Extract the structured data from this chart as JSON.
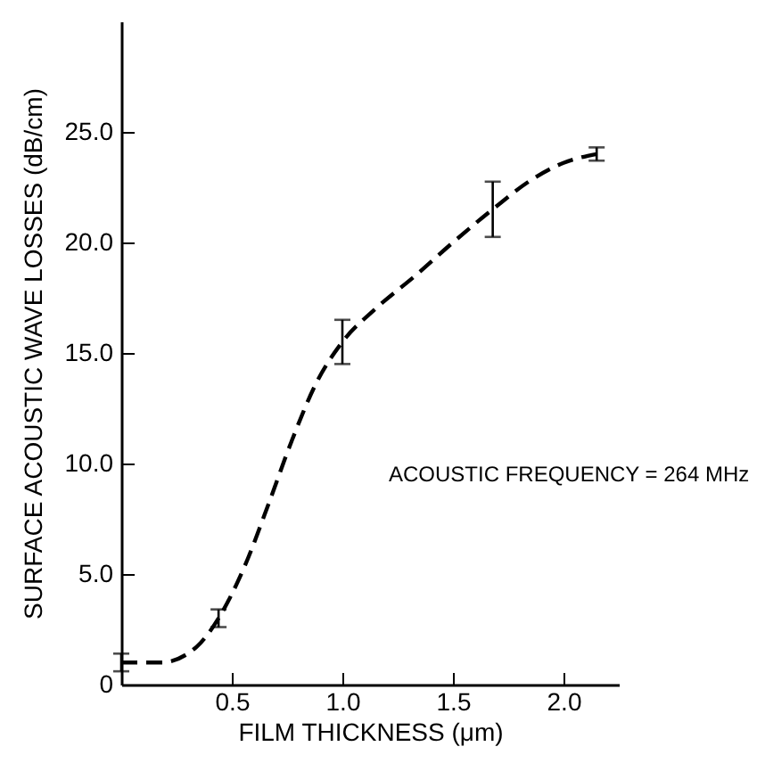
{
  "chart_data": {
    "type": "line",
    "xlabel": "FILM THICKNESS (μm)",
    "ylabel": "SURFACE ACOUSTIC WAVE LOSSES  (dB/cm)",
    "annotations": [
      "ACOUSTIC FREQUENCY = 264 MHz"
    ],
    "series": [
      {
        "color": "#000000",
        "x": [
          0.0,
          0.18,
          0.34,
          0.44,
          0.56,
          0.66,
          0.77,
          0.88,
          1.0,
          1.15,
          1.33,
          1.5,
          1.68,
          1.85,
          2.0,
          2.15
        ],
        "values": [
          1.0,
          1.0,
          1.7,
          3.0,
          5.4,
          8.0,
          11.0,
          13.6,
          15.5,
          17.0,
          18.5,
          20.0,
          21.5,
          22.8,
          23.6,
          24.0
        ],
        "errors": [
          0.4,
          null,
          null,
          0.4,
          null,
          null,
          null,
          null,
          1.0,
          null,
          null,
          null,
          1.25,
          null,
          null,
          0.3
        ]
      }
    ],
    "xlim": [
      0,
      2.25
    ],
    "ylim": [
      0,
      30
    ],
    "xticks": [
      0.5,
      {
        "value": 1.0,
        "label": "1.0"
      },
      {
        "value": 1.5,
        "label": "1.5"
      },
      {
        "value": 2.0,
        "label": "2.0"
      }
    ],
    "yticks": [
      0,
      {
        "value": 5,
        "label": "5.0"
      },
      {
        "value": 10,
        "label": "10.0"
      },
      {
        "value": 15,
        "label": "15.0"
      },
      {
        "value": 20,
        "label": "20.0"
      },
      {
        "value": 25,
        "label": "25.0"
      }
    ],
    "grid": false,
    "marker": "none",
    "line_style": "dashed"
  }
}
